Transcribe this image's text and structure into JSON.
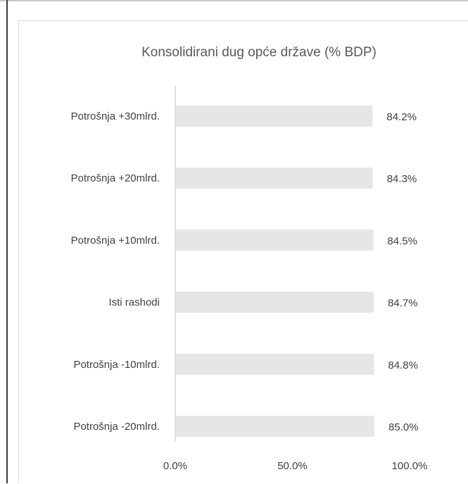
{
  "chart_data": {
    "type": "bar",
    "orientation": "horizontal",
    "title": "Konsolidirani dug opće države (% BDP)",
    "categories": [
      "Potrošnja +30mlrd.",
      "Potrošnja +20mlrd.",
      "Potrošnja +10mlrd.",
      "Isti rashodi",
      "Potrošnja -10mlrd.",
      "Potrošnja -20mlrd."
    ],
    "values": [
      84.2,
      84.3,
      84.5,
      84.7,
      84.8,
      85.0
    ],
    "data_labels": [
      "84.2%",
      "84.3%",
      "84.5%",
      "84.7%",
      "84.8%",
      "85.0%"
    ],
    "x_ticks": [
      0,
      50,
      100
    ],
    "x_tick_labels": [
      "0.0%",
      "50.0%",
      "100.0%"
    ],
    "xlim": [
      0,
      100
    ],
    "xlabel": "",
    "ylabel": "",
    "grid": false,
    "legend": "none",
    "bar_color": "#e6e6e6",
    "axis_color": "#d9d9d9",
    "text_color": "#404040",
    "title_color": "#595959"
  }
}
